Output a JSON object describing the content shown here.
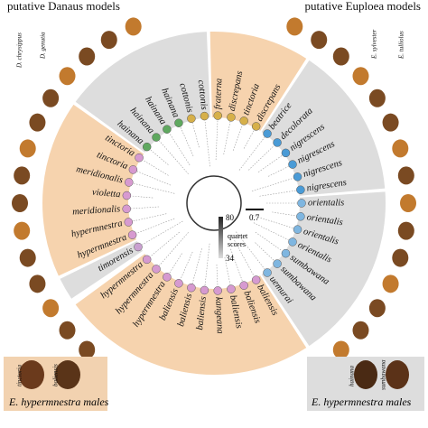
{
  "header": {
    "danaus": "putative Danaus models",
    "euploea": "putative Euploea models",
    "danaus_species": [
      "D. chrysippus",
      "D. genutia"
    ],
    "euploea_species": [
      "E. sylvester",
      "E. tulliolus"
    ]
  },
  "tips": [
    "timorensis",
    "hypermnestra",
    "hypermnestra",
    "meridionalis",
    "violetta",
    "meridionalis",
    "tinctoria",
    "tinctoria",
    "hainana",
    "hainana",
    "hainana",
    "hainana",
    "cottonis",
    "cottonis",
    "fraterna",
    "discrepans",
    "tinctoria",
    "discrepans",
    "beatrice",
    "decolorata",
    "nigrescens",
    "nigrescens",
    "nigrescens",
    "nigrescens",
    "orientalis",
    "orientalis",
    "orientalis",
    "orientalis",
    "sumbawana",
    "sumbawana",
    "uemurai",
    "baliensis",
    "baliensis",
    "baliensis",
    "kangeana",
    "baliensis",
    "baliensis",
    "baliensis",
    "hypermnestra",
    "hypermnestra",
    "hypermnestra"
  ],
  "legend": {
    "max": "80",
    "title": "quartet\nscores",
    "min": "34",
    "scale": "0.7"
  },
  "insets": {
    "left": {
      "labels": [
        "tinctoria",
        "baliensis"
      ],
      "caption": "E. hypermnestra males"
    },
    "right": {
      "labels": [
        "hainana",
        "sumbawana"
      ],
      "caption": "E. hypermnestra males"
    }
  }
}
